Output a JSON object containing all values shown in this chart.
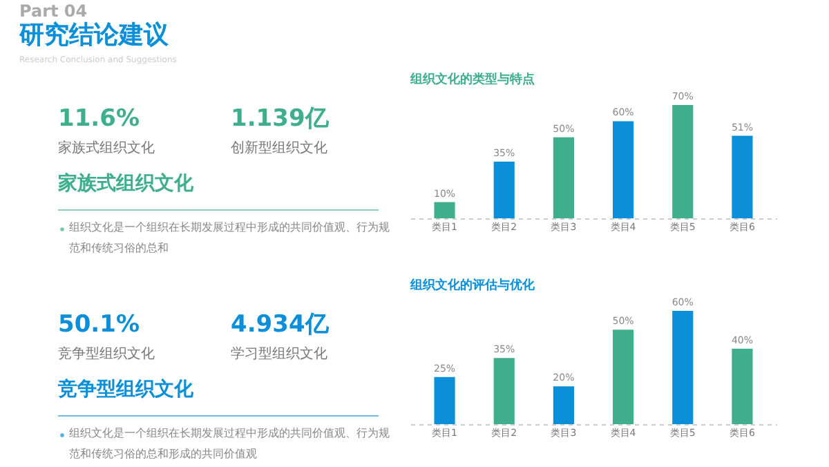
{
  "chart_data": [
    {
      "type": "other",
      "title": "研究结论建议",
      "subtitle": "Research Conclusion and Suggestions",
      "annotations": [
        "Part 04"
      ]
    },
    {
      "type": "other",
      "title": "家族式组织文化",
      "annotations": [
        "11.6%",
        "家族式组织文化",
        "1.139亿",
        "创新型组织文化",
        "组织文化是一个组织在长期发展过程中形成的共同价值观、行为规范和传统习俗的总和"
      ]
    },
    {
      "type": "bar",
      "title": "组织文化的类型与特点",
      "categories": [
        "类目1",
        "类目2",
        "类目3",
        "类目4",
        "类目5",
        "类目6"
      ],
      "values": [
        10,
        35,
        50,
        60,
        70,
        51
      ],
      "value_labels": [
        "10%",
        "35%",
        "50%",
        "60%",
        "70%",
        "51%"
      ],
      "colors": [
        "#3fae8c",
        "#0a8fd8",
        "#3fae8c",
        "#0a8fd8",
        "#3fae8c",
        "#0a8fd8"
      ]
    },
    {
      "type": "other",
      "title": "竞争型组织文化",
      "annotations": [
        "50.1%",
        "竞争型组织文化",
        "4.934亿",
        "学习型组织文化",
        "组织文化是一个组织在长期发展过程中形成的共同价值观、行为规范和传统习俗的总和形成的共同价值观"
      ]
    },
    {
      "type": "bar",
      "title": "组织文化的评估与优化",
      "categories": [
        "类目1",
        "类目2",
        "类目3",
        "类目4",
        "类目5",
        "类目6"
      ],
      "values": [
        25,
        35,
        20,
        50,
        60,
        40
      ],
      "value_labels": [
        "25%",
        "35%",
        "20%",
        "50%",
        "60%",
        "40%"
      ],
      "colors": [
        "#0a8fd8",
        "#3fae8c",
        "#0a8fd8",
        "#3fae8c",
        "#0a8fd8",
        "#3fae8c"
      ]
    }
  ]
}
